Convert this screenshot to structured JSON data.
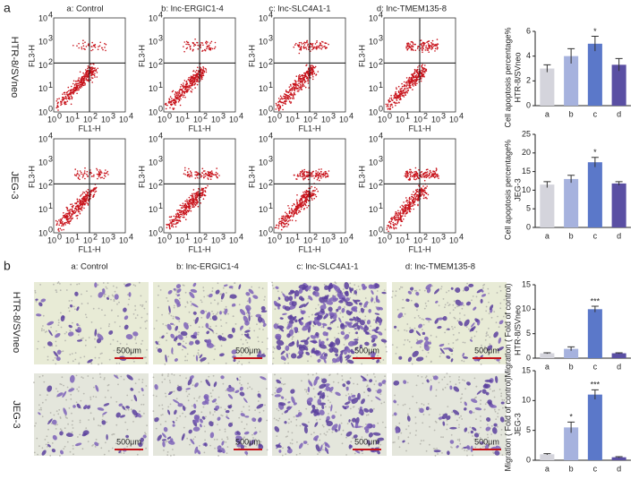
{
  "panel_labels": [
    "a",
    "b"
  ],
  "columns": [
    "a: Control",
    "b: lnc-ERGIC1-4",
    "c: lnc-SLC4A1-1",
    "d: lnc-TMEM135-8"
  ],
  "rows": [
    "HTR-8/SVneo",
    "JEG-3"
  ],
  "flow_axes": {
    "x": "FL1-H",
    "y": "FL3-H"
  },
  "flow_ticks": {
    "base": "10",
    "exponents": [
      "0",
      "1",
      "2",
      "3",
      "4"
    ]
  },
  "scale_bar": "500μm",
  "chart_data": [
    {
      "type": "bar",
      "ylabel": "Cell apoptosis percentage%",
      "ylabel_sub": "HTR-8/SVneo",
      "categories": [
        "a",
        "b",
        "c",
        "d"
      ],
      "values": [
        3.0,
        4.0,
        5.0,
        3.3
      ],
      "errors": [
        0.3,
        0.6,
        0.6,
        0.5
      ],
      "colors": [
        "#d4d4dc",
        "#a6b2de",
        "#5b78c9",
        "#5a4fa3"
      ],
      "annotations": {
        "c": "*"
      },
      "ylim": [
        0,
        6
      ],
      "yticks": [
        0,
        2,
        4,
        6
      ]
    },
    {
      "type": "bar",
      "ylabel": "Cell apoptosis percentage%",
      "ylabel_sub": "JEG-3",
      "categories": [
        "a",
        "b",
        "c",
        "d"
      ],
      "values": [
        11.5,
        13.0,
        17.5,
        11.8
      ],
      "errors": [
        0.8,
        1.0,
        1.3,
        0.5
      ],
      "colors": [
        "#d4d4dc",
        "#a6b2de",
        "#5b78c9",
        "#5a4fa3"
      ],
      "annotations": {
        "c": "*"
      },
      "ylim": [
        0,
        25
      ],
      "yticks": [
        0,
        5,
        10,
        15,
        20,
        25
      ]
    },
    {
      "type": "bar",
      "ylabel": "Migration ( Fold of control)",
      "ylabel_sub": "HTR-8/SVneo",
      "categories": [
        "a",
        "b",
        "c",
        "d"
      ],
      "values": [
        1.0,
        1.9,
        10.0,
        1.0
      ],
      "errors": [
        0.1,
        0.4,
        0.6,
        0.1
      ],
      "colors": [
        "#d4d4dc",
        "#a6b2de",
        "#5b78c9",
        "#5a4fa3"
      ],
      "annotations": {
        "c": "***"
      },
      "ylim": [
        0,
        15
      ],
      "yticks": [
        0,
        5,
        10,
        15
      ]
    },
    {
      "type": "bar",
      "ylabel": "Migration ( Fold of control)",
      "ylabel_sub": "JEG-3",
      "categories": [
        "a",
        "b",
        "c",
        "d"
      ],
      "values": [
        1.0,
        5.5,
        11.0,
        0.5
      ],
      "errors": [
        0.1,
        0.9,
        0.8,
        0.1
      ],
      "colors": [
        "#d4d4dc",
        "#a6b2de",
        "#5b78c9",
        "#5a4fa3"
      ],
      "annotations": {
        "b": "*",
        "c": "***"
      },
      "ylim": [
        0,
        15
      ],
      "yticks": [
        0,
        5,
        10,
        15
      ]
    }
  ]
}
